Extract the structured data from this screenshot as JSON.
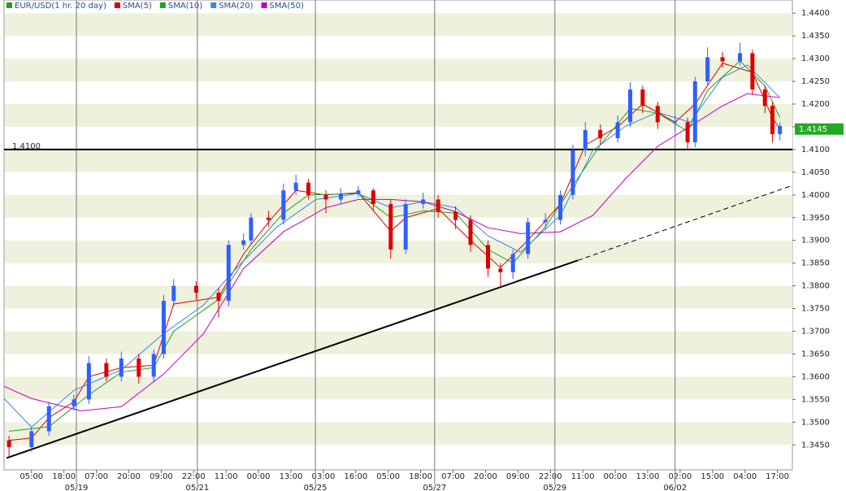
{
  "chart_data": {
    "type": "candlestick",
    "price": {
      "name": "EUR/USD(1 hr. 20 day)",
      "color": "#22a022",
      "up_color": "#2f5fff",
      "down_color": "#dd0000",
      "x": [
        2,
        11,
        18,
        28,
        34,
        41,
        47,
        54,
        60,
        64,
        68,
        77,
        86,
        90,
        96,
        99,
        106,
        112,
        117,
        122,
        129,
        135,
        142,
        148,
        155,
        161,
        168,
        174,
        181,
        187,
        194,
        199,
        204,
        210,
        217,
        223,
        228,
        233,
        239,
        246,
        251,
        256,
        262,
        269,
        274,
        277,
        282,
        288,
        295,
        300,
        305,
        308,
        311
      ],
      "open": [
        1.346,
        1.3445,
        1.348,
        1.3535,
        1.355,
        1.363,
        1.36,
        1.364,
        1.36,
        1.365,
        1.3767,
        1.38,
        1.3785,
        1.3767,
        1.389,
        1.39,
        1.395,
        1.3945,
        1.401,
        1.4027,
        1.4,
        1.399,
        1.4003,
        1.401,
        1.398,
        1.388,
        1.398,
        1.399,
        1.3963,
        1.3945,
        1.389,
        1.3838,
        1.383,
        1.387,
        1.394,
        1.3945,
        1.4,
        1.4098,
        1.4143,
        1.4125,
        1.416,
        1.4232,
        1.4196,
        1.416,
        1.416,
        1.4116,
        1.425,
        1.4303,
        1.4294,
        1.4312,
        1.4232,
        1.4196,
        1.4134
      ],
      "high": [
        1.347,
        1.349,
        1.3545,
        1.356,
        1.3645,
        1.364,
        1.3655,
        1.365,
        1.366,
        1.378,
        1.3815,
        1.381,
        1.3795,
        1.39,
        1.3915,
        1.396,
        1.3965,
        1.4025,
        1.4045,
        1.4035,
        1.401,
        1.4015,
        1.402,
        1.4015,
        1.399,
        1.399,
        1.4005,
        1.4,
        1.3975,
        1.3955,
        1.39,
        1.385,
        1.388,
        1.395,
        1.396,
        1.401,
        1.411,
        1.416,
        1.4155,
        1.4175,
        1.4248,
        1.424,
        1.4205,
        1.4175,
        1.417,
        1.426,
        1.4325,
        1.4315,
        1.4335,
        1.432,
        1.424,
        1.4205,
        1.416
      ],
      "low": [
        1.3425,
        1.3435,
        1.347,
        1.3525,
        1.354,
        1.359,
        1.359,
        1.3585,
        1.359,
        1.364,
        1.3755,
        1.377,
        1.373,
        1.3755,
        1.388,
        1.389,
        1.393,
        1.3935,
        1.4,
        1.399,
        1.396,
        1.398,
        1.3995,
        1.3965,
        1.386,
        1.387,
        1.397,
        1.395,
        1.3925,
        1.3875,
        1.382,
        1.3795,
        1.3815,
        1.386,
        1.3925,
        1.3935,
        1.399,
        1.4085,
        1.411,
        1.4115,
        1.415,
        1.418,
        1.4145,
        1.414,
        1.41,
        1.4105,
        1.424,
        1.428,
        1.4285,
        1.422,
        1.418,
        1.4115,
        1.412
      ],
      "close": [
        1.3445,
        1.348,
        1.3535,
        1.355,
        1.363,
        1.36,
        1.364,
        1.36,
        1.365,
        1.3767,
        1.38,
        1.3785,
        1.3767,
        1.389,
        1.39,
        1.395,
        1.3945,
        1.401,
        1.4027,
        1.4,
        1.399,
        1.4003,
        1.401,
        1.398,
        1.388,
        1.398,
        1.399,
        1.3963,
        1.3945,
        1.389,
        1.3838,
        1.383,
        1.387,
        1.394,
        1.3945,
        1.4,
        1.4098,
        1.4143,
        1.4125,
        1.416,
        1.4232,
        1.4196,
        1.416,
        1.416,
        1.4116,
        1.425,
        1.4303,
        1.4294,
        1.4312,
        1.4232,
        1.4196,
        1.4134,
        1.4152
      ]
    },
    "series": [
      {
        "name": "SMA(5)",
        "color": "#dd0000",
        "x": [
          2,
          11,
          18,
          28,
          34,
          47,
          60,
          68,
          86,
          96,
          106,
          117,
          129,
          142,
          155,
          161,
          174,
          187,
          199,
          210,
          223,
          233,
          246,
          256,
          269,
          277,
          288,
          300,
          308,
          311
        ],
        "values": [
          1.346,
          1.3465,
          1.351,
          1.3545,
          1.36,
          1.362,
          1.3625,
          1.376,
          1.3775,
          1.387,
          1.394,
          1.401,
          1.4,
          1.4005,
          1.392,
          1.395,
          1.397,
          1.39,
          1.384,
          1.39,
          1.398,
          1.411,
          1.415,
          1.42,
          1.416,
          1.42,
          1.429,
          1.427,
          1.417,
          1.4145
        ]
      },
      {
        "name": "SMA(10)",
        "color": "#1fa01f",
        "x": [
          2,
          18,
          34,
          47,
          60,
          68,
          86,
          99,
          112,
          122,
          142,
          155,
          168,
          181,
          194,
          204,
          217,
          228,
          239,
          251,
          262,
          274,
          282,
          295,
          305,
          311
        ],
        "values": [
          1.348,
          1.349,
          1.356,
          1.361,
          1.362,
          1.37,
          1.377,
          1.388,
          1.396,
          1.4,
          1.4003,
          1.395,
          1.3965,
          1.396,
          1.388,
          1.385,
          1.393,
          1.402,
          1.411,
          1.419,
          1.418,
          1.414,
          1.423,
          1.4295,
          1.424,
          1.417
        ]
      },
      {
        "name": "SMA(20)",
        "color": "#3a86e8",
        "x": [
          0,
          11,
          28,
          47,
          64,
          80,
          93,
          109,
          125,
          142,
          155,
          168,
          181,
          194,
          207,
          223,
          236,
          249,
          262,
          275,
          288,
          298,
          311
        ],
        "values": [
          1.3552,
          1.3489,
          1.357,
          1.3615,
          1.3695,
          1.3758,
          1.3838,
          1.3928,
          1.399,
          1.4003,
          1.3972,
          1.3985,
          1.3972,
          1.391,
          1.3874,
          1.3955,
          1.4098,
          1.4151,
          1.4182,
          1.416,
          1.4259,
          1.4286,
          1.4214
        ]
      },
      {
        "name": "SMA(50)",
        "color": "#c000c0",
        "x": [
          0,
          11,
          31,
          47,
          64,
          80,
          96,
          112,
          129,
          142,
          155,
          168,
          181,
          194,
          207,
          223,
          236,
          249,
          262,
          275,
          288,
          298,
          311
        ],
        "values": [
          1.3579,
          1.3552,
          1.3525,
          1.3534,
          1.3606,
          1.3695,
          1.3838,
          1.3919,
          1.3972,
          1.399,
          1.399,
          1.3985,
          1.3963,
          1.3928,
          1.3915,
          1.3919,
          1.3955,
          1.4035,
          1.4107,
          1.4151,
          1.4196,
          1.4223,
          1.4214
        ]
      }
    ],
    "support_level": {
      "value": 1.41,
      "label": "1.4100"
    },
    "trendline": {
      "x": [
        1,
        230,
        316
      ],
      "values": [
        1.3421,
        1.3856,
        1.4021
      ]
    },
    "last_price": {
      "value": 1.4145,
      "label": "1.4145"
    },
    "xlim": [
      0,
      316
    ],
    "ylim": [
      1.3395,
      1.4429
    ],
    "xticks": [
      {
        "value": 11,
        "label": "05:00"
      },
      {
        "value": 24,
        "label": "18:00"
      },
      {
        "value": 37,
        "label": "07:00"
      },
      {
        "value": 50,
        "label": "20:00"
      },
      {
        "value": 63,
        "label": "09:00"
      },
      {
        "value": 76,
        "label": "22:00"
      },
      {
        "value": 89,
        "label": "11:00"
      },
      {
        "value": 102,
        "label": "00:00"
      },
      {
        "value": 115,
        "label": "13:00"
      },
      {
        "value": 128,
        "label": "03:00"
      },
      {
        "value": 141,
        "label": "16:00"
      },
      {
        "value": 154,
        "label": "05:00"
      },
      {
        "value": 167,
        "label": "18:00"
      },
      {
        "value": 180,
        "label": "07:00"
      },
      {
        "value": 193,
        "label": "20:00"
      },
      {
        "value": 206,
        "label": "09:00"
      },
      {
        "value": 219,
        "label": "22:00"
      },
      {
        "value": 232,
        "label": "11:00"
      },
      {
        "value": 245,
        "label": "00:00"
      },
      {
        "value": 258,
        "label": "13:00"
      },
      {
        "value": 271,
        "label": "02:00"
      },
      {
        "value": 284,
        "label": "15:00"
      },
      {
        "value": 297,
        "label": "04:00"
      },
      {
        "value": 310,
        "label": "17:00"
      }
    ],
    "date_ticks": [
      {
        "value": 29,
        "label": "05/19"
      },
      {
        "value": 77.5,
        "label": "05/21"
      },
      {
        "value": 124.8,
        "label": "05/25"
      },
      {
        "value": 172.6,
        "label": "05/27"
      },
      {
        "value": 220.8,
        "label": "05/29"
      },
      {
        "value": 269,
        "label": "06/02"
      }
    ],
    "yticks": [
      {
        "value": 1.345,
        "label": "1.3450"
      },
      {
        "value": 1.35,
        "label": "1.3500"
      },
      {
        "value": 1.355,
        "label": "1.3550"
      },
      {
        "value": 1.36,
        "label": "1.3600"
      },
      {
        "value": 1.365,
        "label": "1.3650"
      },
      {
        "value": 1.37,
        "label": "1.3700"
      },
      {
        "value": 1.375,
        "label": "1.3750"
      },
      {
        "value": 1.38,
        "label": "1.3800"
      },
      {
        "value": 1.385,
        "label": "1.3850"
      },
      {
        "value": 1.39,
        "label": "1.3900"
      },
      {
        "value": 1.395,
        "label": "1.3950"
      },
      {
        "value": 1.4,
        "label": "1.4000"
      },
      {
        "value": 1.405,
        "label": "1.4050"
      },
      {
        "value": 1.41,
        "label": "1.4100"
      },
      {
        "value": 1.415,
        "label": "1.4150"
      },
      {
        "value": 1.42,
        "label": "1.4200"
      },
      {
        "value": 1.425,
        "label": "1.4250"
      },
      {
        "value": 1.43,
        "label": "1.4300"
      },
      {
        "value": 1.435,
        "label": "1.4350"
      },
      {
        "value": 1.44,
        "label": "1.4400"
      }
    ],
    "grid": true
  }
}
